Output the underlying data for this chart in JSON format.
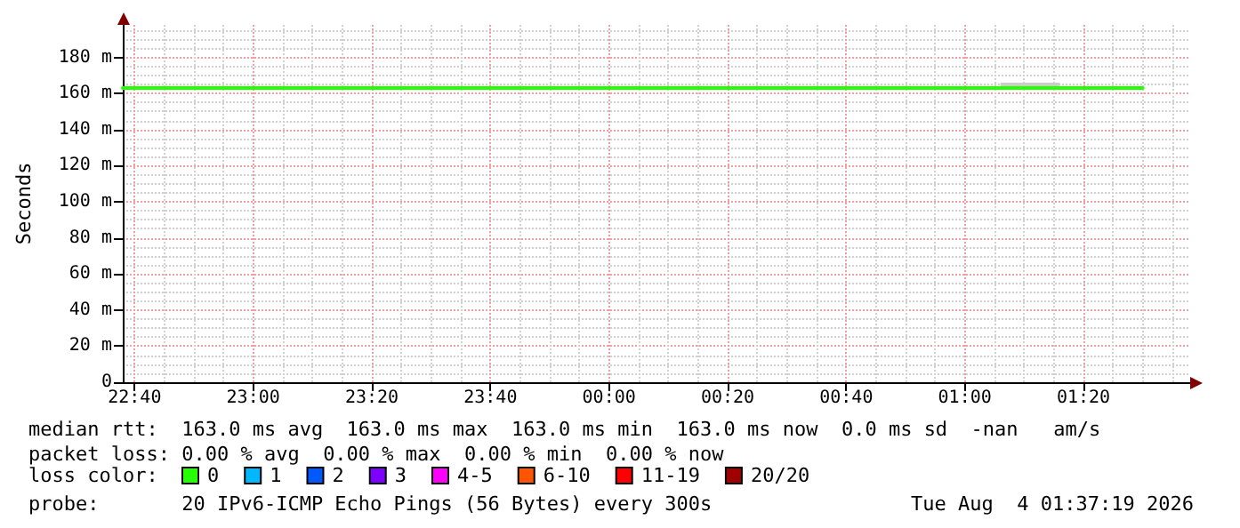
{
  "chart_data": {
    "type": "line",
    "ylabel": "Seconds",
    "legend_title": "loss color:",
    "legend": "bottom left",
    "grid": true,
    "marker": "none",
    "line_style": "solid",
    "xlim": [
      "2026-08-03T22:38",
      "2026-08-04T01:38"
    ],
    "xticks": [
      {
        "value": "2026-08-03T22:40",
        "label": "22:40"
      },
      {
        "value": "2026-08-03T23:00",
        "label": "23:00"
      },
      {
        "value": "2026-08-03T23:20",
        "label": "23:20"
      },
      {
        "value": "2026-08-03T23:40",
        "label": "23:40"
      },
      {
        "value": "2026-08-04T00:00",
        "label": "00:00"
      },
      {
        "value": "2026-08-04T00:20",
        "label": "00:20"
      },
      {
        "value": "2026-08-04T00:40",
        "label": "00:40"
      },
      {
        "value": "2026-08-04T01:00",
        "label": "01:00"
      },
      {
        "value": "2026-08-04T01:20",
        "label": "01:20"
      }
    ],
    "ylim": [
      0,
      198
    ],
    "yticks": [
      0,
      {
        "value": 20,
        "label": "20 m"
      },
      {
        "value": 40,
        "label": "40 m"
      },
      {
        "value": 60,
        "label": "60 m"
      },
      {
        "value": 80,
        "label": "80 m"
      },
      {
        "value": 100,
        "label": "100 m"
      },
      {
        "value": 120,
        "label": "120 m"
      },
      {
        "value": 140,
        "label": "140 m"
      },
      {
        "value": 160,
        "label": "160 m"
      },
      {
        "value": 180,
        "label": "180 m"
      }
    ],
    "x": [
      "2026-08-03T22:38",
      "2026-08-04T01:06",
      "2026-08-04T01:16",
      "2026-08-04T01:30"
    ],
    "series": [
      {
        "name": "0",
        "color": "#26ff00",
        "values": [
          163,
          163,
          163,
          163
        ],
        "lower": [
          null,
          163,
          163,
          null
        ],
        "upper": [
          null,
          166,
          166,
          null
        ]
      },
      {
        "name": "1",
        "color": "#00b8ff",
        "values": [
          null,
          null,
          null,
          null
        ]
      },
      {
        "name": "2",
        "color": "#0059ff",
        "values": [
          null,
          null,
          null,
          null
        ]
      },
      {
        "name": "3",
        "color": "#7e00ff",
        "values": [
          null,
          null,
          null,
          null
        ]
      },
      {
        "name": "4-5",
        "color": "#ff00ff",
        "values": [
          null,
          null,
          null,
          null
        ]
      },
      {
        "name": "6-10",
        "color": "#ff5500",
        "values": [
          null,
          null,
          null,
          null
        ]
      },
      {
        "name": "11-19",
        "color": "#ff0000",
        "values": [
          null,
          null,
          null,
          null
        ]
      },
      {
        "name": "20/20",
        "color": "#a00000",
        "values": [
          null,
          null,
          null,
          null
        ]
      }
    ],
    "annotations": [
      "median rtt:  163.0 ms avg  163.0 ms max  163.0 ms min  163.0 ms now  0.0 ms sd  -nan   am/s",
      "packet loss: 0.00 % avg  0.00 % max  0.00 % min  0.00 % now",
      "probe:       20 IPv6-ICMP Echo Pings (56 Bytes) every 300s",
      "Tue Aug  4 01:37:19 2026"
    ]
  }
}
